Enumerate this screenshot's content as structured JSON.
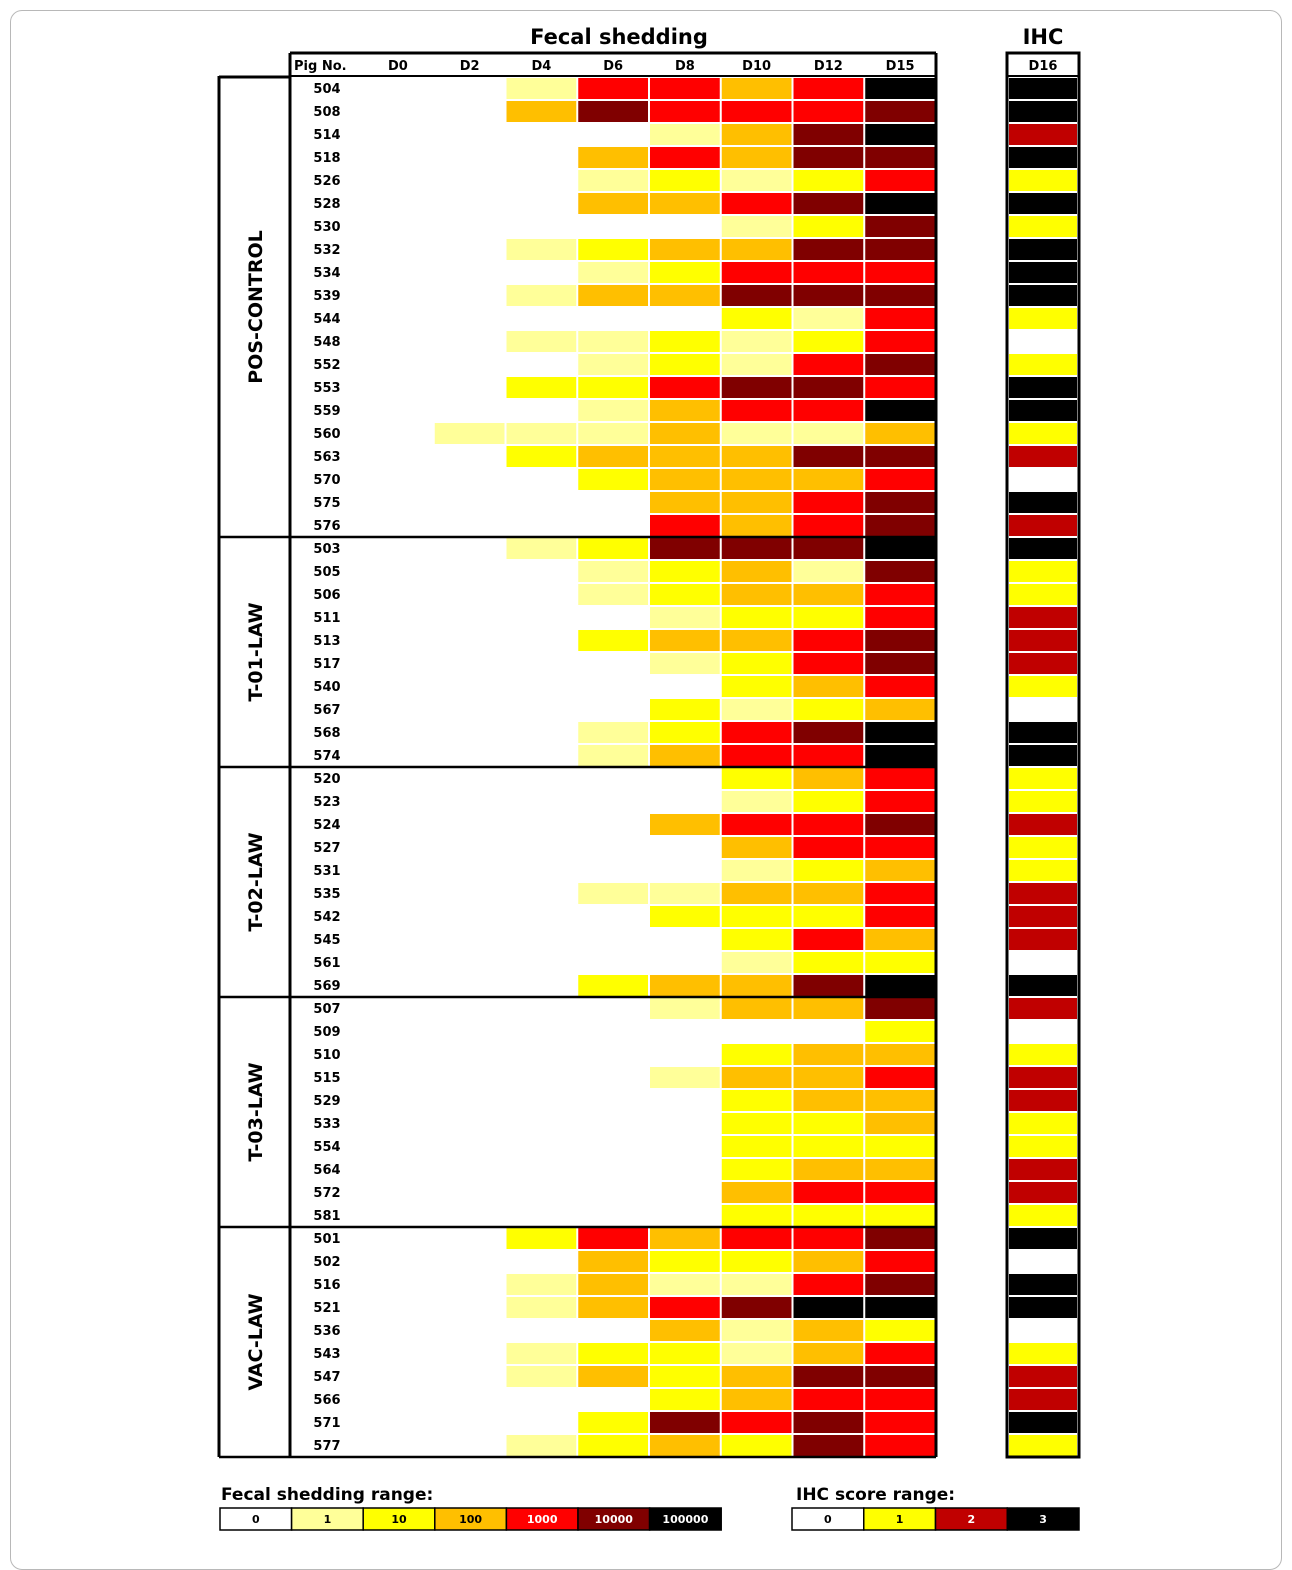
{
  "chart_data": {
    "type": "heatmap",
    "title": "Fecal shedding",
    "ihc_title": "IHC",
    "row_header": "Pig No.",
    "columns": [
      "D0",
      "D2",
      "D4",
      "D6",
      "D8",
      "D10",
      "D12",
      "D15"
    ],
    "ihc_column": "D16",
    "levels": [
      "0",
      "1",
      "10",
      "100",
      "1000",
      "10000",
      "100000"
    ],
    "fecal_colors": [
      "#ffffff",
      "#ffff99",
      "#ffff00",
      "#ffbf00",
      "#ff0000",
      "#800000",
      "#000000"
    ],
    "ihc_levels": [
      "0",
      "1",
      "2",
      "3"
    ],
    "ihc_colors": [
      "#ffffff",
      "#ffff00",
      "#c00000",
      "#000000"
    ],
    "groups": [
      {
        "name": "POS-CONTROL",
        "rows": [
          {
            "pig": "504",
            "fecal": [
              0,
              0,
              1,
              4,
              4,
              3,
              4,
              6
            ],
            "ihc": 3
          },
          {
            "pig": "508",
            "fecal": [
              0,
              0,
              3,
              5,
              4,
              4,
              4,
              5
            ],
            "ihc": 3
          },
          {
            "pig": "514",
            "fecal": [
              0,
              0,
              0,
              0,
              1,
              3,
              5,
              6
            ],
            "ihc": 2
          },
          {
            "pig": "518",
            "fecal": [
              0,
              0,
              0,
              3,
              4,
              3,
              5,
              5
            ],
            "ihc": 3
          },
          {
            "pig": "526",
            "fecal": [
              0,
              0,
              0,
              1,
              2,
              1,
              2,
              4
            ],
            "ihc": 1
          },
          {
            "pig": "528",
            "fecal": [
              0,
              0,
              0,
              3,
              3,
              4,
              5,
              6
            ],
            "ihc": 3
          },
          {
            "pig": "530",
            "fecal": [
              0,
              0,
              0,
              0,
              0,
              1,
              2,
              5
            ],
            "ihc": 1
          },
          {
            "pig": "532",
            "fecal": [
              0,
              0,
              1,
              2,
              3,
              3,
              5,
              5
            ],
            "ihc": 3
          },
          {
            "pig": "534",
            "fecal": [
              0,
              0,
              0,
              1,
              2,
              4,
              4,
              4
            ],
            "ihc": 3
          },
          {
            "pig": "539",
            "fecal": [
              0,
              0,
              1,
              3,
              3,
              5,
              5,
              5
            ],
            "ihc": 3
          },
          {
            "pig": "544",
            "fecal": [
              0,
              0,
              0,
              0,
              0,
              2,
              1,
              4
            ],
            "ihc": 1
          },
          {
            "pig": "548",
            "fecal": [
              0,
              0,
              1,
              1,
              2,
              1,
              2,
              4
            ],
            "ihc": 0
          },
          {
            "pig": "552",
            "fecal": [
              0,
              0,
              0,
              1,
              2,
              1,
              4,
              5
            ],
            "ihc": 1
          },
          {
            "pig": "553",
            "fecal": [
              0,
              0,
              2,
              2,
              4,
              5,
              5,
              4
            ],
            "ihc": 3
          },
          {
            "pig": "559",
            "fecal": [
              0,
              0,
              0,
              1,
              3,
              4,
              4,
              6
            ],
            "ihc": 3
          },
          {
            "pig": "560",
            "fecal": [
              0,
              1,
              1,
              1,
              3,
              1,
              1,
              3
            ],
            "ihc": 1
          },
          {
            "pig": "563",
            "fecal": [
              0,
              0,
              2,
              3,
              3,
              3,
              5,
              5
            ],
            "ihc": 2
          },
          {
            "pig": "570",
            "fecal": [
              0,
              0,
              0,
              2,
              3,
              3,
              3,
              4
            ],
            "ihc": 0
          },
          {
            "pig": "575",
            "fecal": [
              0,
              0,
              0,
              0,
              3,
              3,
              4,
              5
            ],
            "ihc": 3
          },
          {
            "pig": "576",
            "fecal": [
              0,
              0,
              0,
              0,
              4,
              3,
              4,
              5
            ],
            "ihc": 2
          }
        ]
      },
      {
        "name": "T-01-LAW",
        "rows": [
          {
            "pig": "503",
            "fecal": [
              0,
              0,
              1,
              2,
              5,
              5,
              5,
              6
            ],
            "ihc": 3
          },
          {
            "pig": "505",
            "fecal": [
              0,
              0,
              0,
              1,
              2,
              3,
              1,
              5
            ],
            "ihc": 1
          },
          {
            "pig": "506",
            "fecal": [
              0,
              0,
              0,
              1,
              2,
              3,
              3,
              4
            ],
            "ihc": 1
          },
          {
            "pig": "511",
            "fecal": [
              0,
              0,
              0,
              0,
              1,
              2,
              2,
              4
            ],
            "ihc": 2
          },
          {
            "pig": "513",
            "fecal": [
              0,
              0,
              0,
              2,
              3,
              3,
              4,
              5
            ],
            "ihc": 2
          },
          {
            "pig": "517",
            "fecal": [
              0,
              0,
              0,
              0,
              1,
              2,
              4,
              5
            ],
            "ihc": 2
          },
          {
            "pig": "540",
            "fecal": [
              0,
              0,
              0,
              0,
              0,
              2,
              3,
              4
            ],
            "ihc": 1
          },
          {
            "pig": "567",
            "fecal": [
              0,
              0,
              0,
              0,
              2,
              1,
              2,
              3
            ],
            "ihc": 0
          },
          {
            "pig": "568",
            "fecal": [
              0,
              0,
              0,
              1,
              2,
              4,
              5,
              6
            ],
            "ihc": 3
          },
          {
            "pig": "574",
            "fecal": [
              0,
              0,
              0,
              1,
              3,
              4,
              4,
              6
            ],
            "ihc": 3
          }
        ]
      },
      {
        "name": "T-02-LAW",
        "rows": [
          {
            "pig": "520",
            "fecal": [
              0,
              0,
              0,
              0,
              0,
              2,
              3,
              4
            ],
            "ihc": 1
          },
          {
            "pig": "523",
            "fecal": [
              0,
              0,
              0,
              0,
              0,
              1,
              2,
              4
            ],
            "ihc": 1
          },
          {
            "pig": "524",
            "fecal": [
              0,
              0,
              0,
              0,
              3,
              4,
              4,
              5
            ],
            "ihc": 2
          },
          {
            "pig": "527",
            "fecal": [
              0,
              0,
              0,
              0,
              0,
              3,
              4,
              4
            ],
            "ihc": 1
          },
          {
            "pig": "531",
            "fecal": [
              0,
              0,
              0,
              0,
              0,
              1,
              2,
              3
            ],
            "ihc": 1
          },
          {
            "pig": "535",
            "fecal": [
              0,
              0,
              0,
              1,
              1,
              3,
              3,
              4
            ],
            "ihc": 2
          },
          {
            "pig": "542",
            "fecal": [
              0,
              0,
              0,
              0,
              2,
              2,
              2,
              4
            ],
            "ihc": 2
          },
          {
            "pig": "545",
            "fecal": [
              0,
              0,
              0,
              0,
              0,
              2,
              4,
              3
            ],
            "ihc": 2
          },
          {
            "pig": "561",
            "fecal": [
              0,
              0,
              0,
              0,
              0,
              1,
              2,
              2
            ],
            "ihc": 0
          },
          {
            "pig": "569",
            "fecal": [
              0,
              0,
              0,
              2,
              3,
              3,
              5,
              6
            ],
            "ihc": 3
          }
        ]
      },
      {
        "name": "T-03-LAW",
        "rows": [
          {
            "pig": "507",
            "fecal": [
              0,
              0,
              0,
              0,
              1,
              3,
              3,
              5
            ],
            "ihc": 2
          },
          {
            "pig": "509",
            "fecal": [
              0,
              0,
              0,
              0,
              0,
              0,
              0,
              2
            ],
            "ihc": 0
          },
          {
            "pig": "510",
            "fecal": [
              0,
              0,
              0,
              0,
              0,
              2,
              3,
              3
            ],
            "ihc": 1
          },
          {
            "pig": "515",
            "fecal": [
              0,
              0,
              0,
              0,
              1,
              3,
              3,
              4
            ],
            "ihc": 2
          },
          {
            "pig": "529",
            "fecal": [
              0,
              0,
              0,
              0,
              0,
              2,
              3,
              3
            ],
            "ihc": 2
          },
          {
            "pig": "533",
            "fecal": [
              0,
              0,
              0,
              0,
              0,
              2,
              2,
              3
            ],
            "ihc": 1
          },
          {
            "pig": "554",
            "fecal": [
              0,
              0,
              0,
              0,
              0,
              2,
              2,
              2
            ],
            "ihc": 1
          },
          {
            "pig": "564",
            "fecal": [
              0,
              0,
              0,
              0,
              0,
              2,
              3,
              3
            ],
            "ihc": 2
          },
          {
            "pig": "572",
            "fecal": [
              0,
              0,
              0,
              0,
              0,
              3,
              4,
              4
            ],
            "ihc": 2
          },
          {
            "pig": "581",
            "fecal": [
              0,
              0,
              0,
              0,
              0,
              2,
              2,
              2
            ],
            "ihc": 1
          }
        ]
      },
      {
        "name": "VAC-LAW",
        "rows": [
          {
            "pig": "501",
            "fecal": [
              0,
              0,
              2,
              4,
              3,
              4,
              4,
              5
            ],
            "ihc": 3
          },
          {
            "pig": "502",
            "fecal": [
              0,
              0,
              0,
              3,
              2,
              2,
              3,
              4
            ],
            "ihc": 0
          },
          {
            "pig": "516",
            "fecal": [
              0,
              0,
              1,
              3,
              1,
              1,
              4,
              5
            ],
            "ihc": 3
          },
          {
            "pig": "521",
            "fecal": [
              0,
              0,
              1,
              3,
              4,
              5,
              6,
              6
            ],
            "ihc": 3
          },
          {
            "pig": "536",
            "fecal": [
              0,
              0,
              0,
              0,
              3,
              1,
              3,
              2
            ],
            "ihc": 0
          },
          {
            "pig": "543",
            "fecal": [
              0,
              0,
              1,
              2,
              2,
              1,
              3,
              4
            ],
            "ihc": 1
          },
          {
            "pig": "547",
            "fecal": [
              0,
              0,
              1,
              3,
              2,
              3,
              5,
              5
            ],
            "ihc": 2
          },
          {
            "pig": "566",
            "fecal": [
              0,
              0,
              0,
              0,
              2,
              3,
              4,
              4
            ],
            "ihc": 2
          },
          {
            "pig": "571",
            "fecal": [
              0,
              0,
              0,
              2,
              5,
              4,
              5,
              4
            ],
            "ihc": 3
          },
          {
            "pig": "577",
            "fecal": [
              0,
              0,
              1,
              2,
              3,
              2,
              5,
              4
            ],
            "ihc": 1
          }
        ]
      }
    ],
    "legend_fecal_title": "Fecal shedding range:",
    "legend_ihc_title": "IHC score range:"
  }
}
